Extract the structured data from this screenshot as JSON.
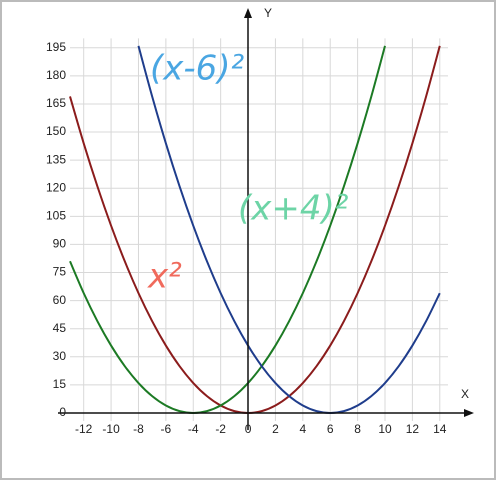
{
  "chart_data": {
    "type": "line",
    "x": [
      -13,
      -12,
      -11,
      -10,
      -9,
      -8,
      -7,
      -6,
      -5,
      -4,
      -3,
      -2,
      -1,
      0,
      1,
      2,
      3,
      4,
      5,
      6,
      7,
      8,
      9,
      10,
      11,
      12,
      13,
      14
    ],
    "series": [
      {
        "color": "#8b1c1c",
        "values": [
          169,
          144,
          121,
          100,
          81,
          64,
          49,
          36,
          25,
          16,
          9,
          4,
          1,
          0,
          1,
          4,
          9,
          16,
          25,
          36,
          49,
          64,
          81,
          100,
          121,
          144,
          169,
          196
        ]
      },
      {
        "color": "#1c7a24",
        "values": [
          81,
          64,
          49,
          36,
          25,
          16,
          9,
          4,
          1,
          0,
          1,
          4,
          9,
          16,
          25,
          36,
          49,
          64,
          81,
          100,
          121,
          144,
          169,
          196,
          null,
          null,
          null,
          null
        ]
      },
      {
        "color": "#1f3d8c",
        "values": [
          null,
          null,
          null,
          null,
          null,
          196,
          169,
          144,
          121,
          100,
          81,
          64,
          49,
          36,
          25,
          16,
          9,
          4,
          1,
          0,
          1,
          4,
          9,
          16,
          25,
          36,
          49,
          64
        ]
      }
    ],
    "xlim": [
      -13,
      14.6
    ],
    "ylim": [
      0,
      200
    ],
    "xticks": [
      -12,
      -10,
      -8,
      -6,
      -4,
      -2,
      0,
      2,
      4,
      6,
      8,
      10,
      12,
      14
    ],
    "yticks": [
      0,
      15,
      30,
      45,
      60,
      75,
      90,
      105,
      120,
      135,
      150,
      165,
      180,
      195
    ],
    "x_label": "X",
    "y_label": "Y",
    "grid": true,
    "annotations": [
      {
        "text": "(x-6)²",
        "color": "#4aa6e2"
      },
      {
        "text": "(x+4)²",
        "color": "#6dd4a6"
      },
      {
        "text": "x²",
        "color": "#f06a5c"
      }
    ]
  }
}
